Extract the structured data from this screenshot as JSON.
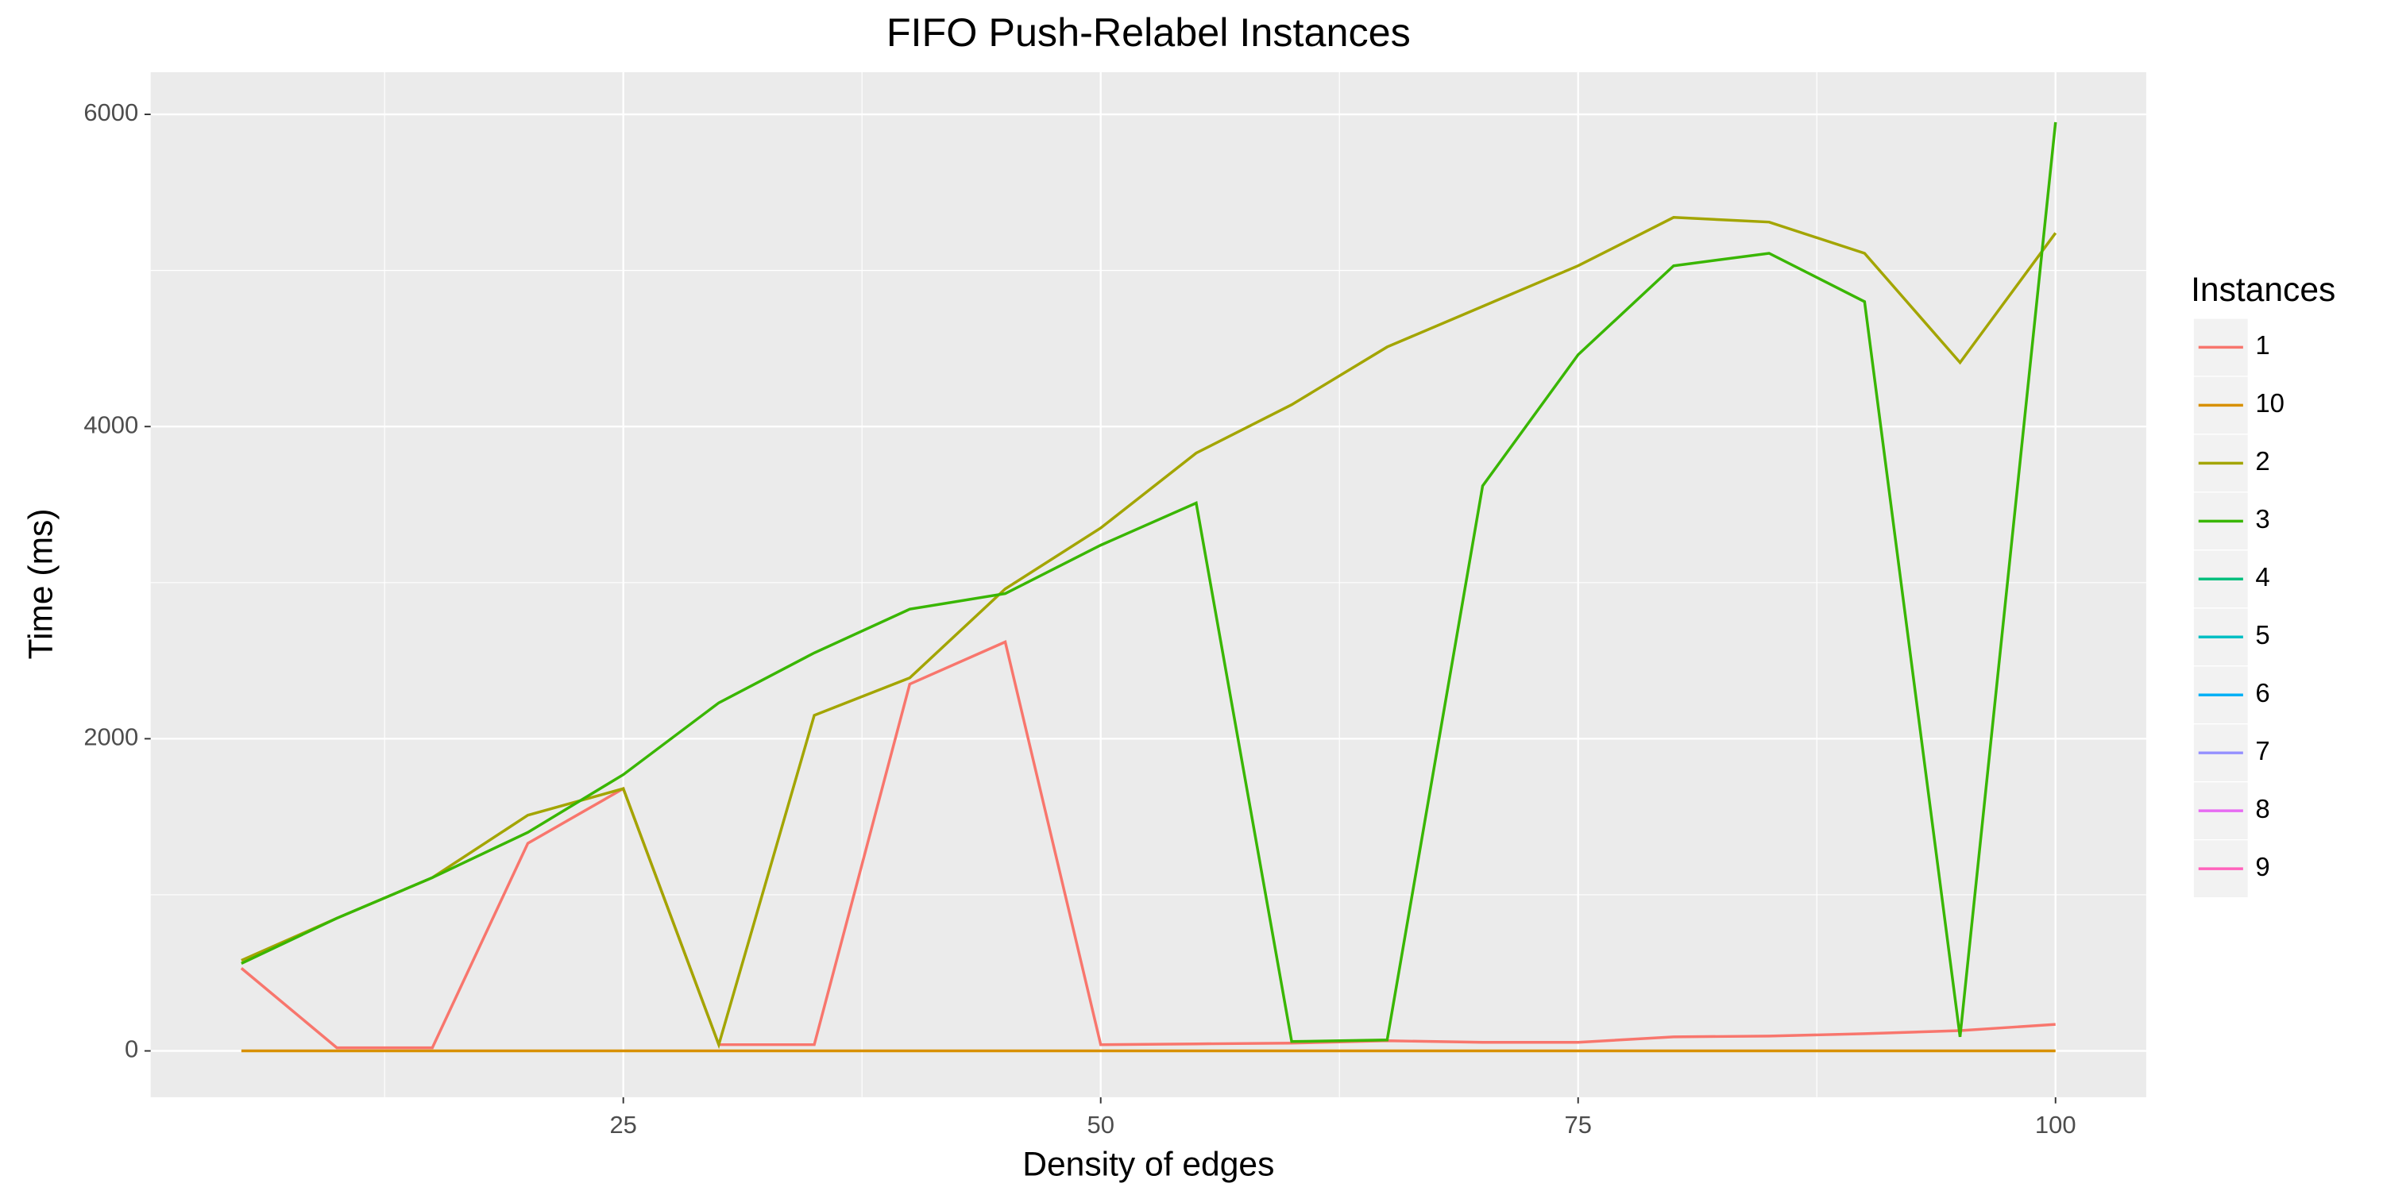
{
  "chart_data": {
    "type": "line",
    "title": "FIFO Push-Relabel Instances",
    "x_label": "Density of edges",
    "y_label": "Time (ms)",
    "legend_title": "Instances",
    "legend_position": "right",
    "grid": true,
    "x": [
      5,
      10,
      15,
      20,
      25,
      30,
      35,
      40,
      45,
      50,
      55,
      60,
      65,
      70,
      75,
      80,
      85,
      90,
      95,
      100
    ],
    "xlim": [
      0.25,
      104.75
    ],
    "xticks": [
      25,
      50,
      75,
      100
    ],
    "x_minor_ticks": [
      12.5,
      37.5,
      62.5,
      87.5
    ],
    "ylim": [
      -297,
      6270
    ],
    "yticks": [
      0,
      2000,
      4000,
      6000
    ],
    "y_minor_ticks": [
      1000,
      3000,
      5000
    ],
    "series": [
      {
        "name": "1",
        "color": "#F8766D",
        "values": [
          530,
          20,
          20,
          1330,
          1680,
          40,
          40,
          2350,
          2620,
          40,
          45,
          50,
          65,
          55,
          55,
          90,
          95,
          110,
          130,
          170
        ]
      },
      {
        "name": "10",
        "color": "#D89000",
        "values": [
          0,
          0,
          0,
          0,
          0,
          0,
          0,
          0,
          0,
          0,
          0,
          0,
          0,
          0,
          0,
          0,
          0,
          0,
          0,
          0
        ]
      },
      {
        "name": "2",
        "color": "#A3A500",
        "values": [
          580,
          850,
          1110,
          1510,
          1680,
          40,
          2150,
          2390,
          2960,
          3350,
          3830,
          4140,
          4510,
          4770,
          5030,
          5340,
          5310,
          5110,
          4410,
          5240
        ]
      },
      {
        "name": "3",
        "color": "#39B600",
        "values": [
          560,
          850,
          1110,
          1400,
          1770,
          2230,
          2550,
          2830,
          2930,
          3240,
          3510,
          60,
          70,
          3620,
          4460,
          5030,
          5110,
          4800,
          90,
          5950
        ]
      },
      {
        "name": "4",
        "color": "#00BF7D",
        "values": [
          null,
          null,
          null,
          null,
          null,
          null,
          null,
          null,
          null,
          null,
          null,
          null,
          null,
          null,
          null,
          null,
          null,
          null,
          null,
          null
        ]
      },
      {
        "name": "5",
        "color": "#00BFC4",
        "values": [
          null,
          null,
          null,
          null,
          null,
          null,
          null,
          null,
          null,
          null,
          null,
          null,
          null,
          null,
          null,
          null,
          null,
          null,
          null,
          null
        ]
      },
      {
        "name": "6",
        "color": "#00B0F6",
        "values": [
          null,
          null,
          null,
          null,
          null,
          null,
          null,
          null,
          null,
          null,
          null,
          null,
          null,
          null,
          null,
          null,
          null,
          null,
          null,
          null
        ]
      },
      {
        "name": "7",
        "color": "#9590FF",
        "values": [
          null,
          null,
          null,
          null,
          null,
          null,
          null,
          null,
          null,
          null,
          null,
          null,
          null,
          null,
          null,
          null,
          null,
          null,
          null,
          null
        ]
      },
      {
        "name": "8",
        "color": "#E76BF3",
        "values": [
          null,
          null,
          null,
          null,
          null,
          null,
          null,
          null,
          null,
          null,
          null,
          null,
          null,
          null,
          null,
          null,
          null,
          null,
          null,
          null
        ]
      },
      {
        "name": "9",
        "color": "#FF62BC",
        "values": [
          null,
          null,
          null,
          null,
          null,
          null,
          null,
          null,
          null,
          null,
          null,
          null,
          null,
          null,
          null,
          null,
          null,
          null,
          null,
          null
        ]
      }
    ]
  }
}
